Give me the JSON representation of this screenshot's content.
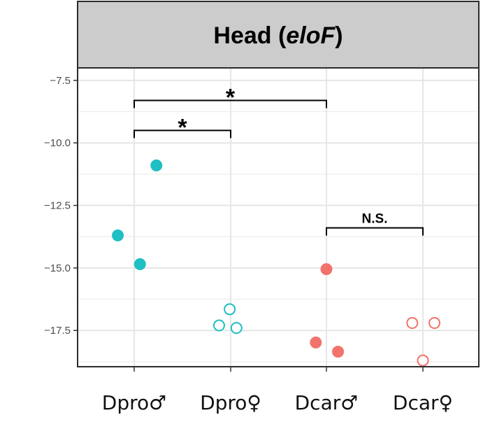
{
  "chart_data": {
    "type": "scatter",
    "title_main": "Head (",
    "title_italic": "eloF",
    "title_end": ")",
    "xlabel": "",
    "ylabel": "",
    "categories": [
      "Dpro♂",
      "Dpro♀",
      "Dcar♂",
      "Dcar♀"
    ],
    "ylim": [
      -18.95,
      -7.0
    ],
    "yticks": [
      -7.5,
      -10.0,
      -12.5,
      -15.0,
      -17.5
    ],
    "ytick_labels": [
      "−7.5",
      "−10.0",
      "−12.5",
      "−15.0",
      "−17.5"
    ],
    "grid": true,
    "colors": {
      "Dpro": "#1fbfc4",
      "Dcar": "#f2736b"
    },
    "points": [
      {
        "category": "Dpro♂",
        "jitter": 0.23,
        "y": -10.9,
        "filled": true,
        "group": "Dpro"
      },
      {
        "category": "Dpro♂",
        "jitter": -0.17,
        "y": -13.7,
        "filled": true,
        "group": "Dpro"
      },
      {
        "category": "Dpro♂",
        "jitter": 0.06,
        "y": -14.85,
        "filled": true,
        "group": "Dpro"
      },
      {
        "category": "Dpro♀",
        "jitter": -0.01,
        "y": -16.65,
        "filled": false,
        "group": "Dpro"
      },
      {
        "category": "Dpro♀",
        "jitter": -0.12,
        "y": -17.3,
        "filled": false,
        "group": "Dpro"
      },
      {
        "category": "Dpro♀",
        "jitter": 0.06,
        "y": -17.4,
        "filled": false,
        "group": "Dpro"
      },
      {
        "category": "Dcar♂",
        "jitter": 0.0,
        "y": -15.05,
        "filled": true,
        "group": "Dcar"
      },
      {
        "category": "Dcar♂",
        "jitter": -0.11,
        "y": -17.98,
        "filled": true,
        "group": "Dcar"
      },
      {
        "category": "Dcar♂",
        "jitter": 0.12,
        "y": -18.35,
        "filled": true,
        "group": "Dcar"
      },
      {
        "category": "Dcar♀",
        "jitter": -0.11,
        "y": -17.2,
        "filled": false,
        "group": "Dcar"
      },
      {
        "category": "Dcar♀",
        "jitter": 0.12,
        "y": -17.2,
        "filled": false,
        "group": "Dcar"
      },
      {
        "category": "Dcar♀",
        "jitter": 0.0,
        "y": -18.7,
        "filled": false,
        "group": "Dcar"
      }
    ],
    "annotations": [
      {
        "from": "Dpro♂",
        "to": "Dcar♂",
        "y": -8.3,
        "label": "*"
      },
      {
        "from": "Dpro♂",
        "to": "Dpro♀",
        "y": -9.5,
        "label": "*"
      },
      {
        "from": "Dcar♂",
        "to": "Dcar♀",
        "y": -13.4,
        "label": "N.S."
      }
    ]
  }
}
